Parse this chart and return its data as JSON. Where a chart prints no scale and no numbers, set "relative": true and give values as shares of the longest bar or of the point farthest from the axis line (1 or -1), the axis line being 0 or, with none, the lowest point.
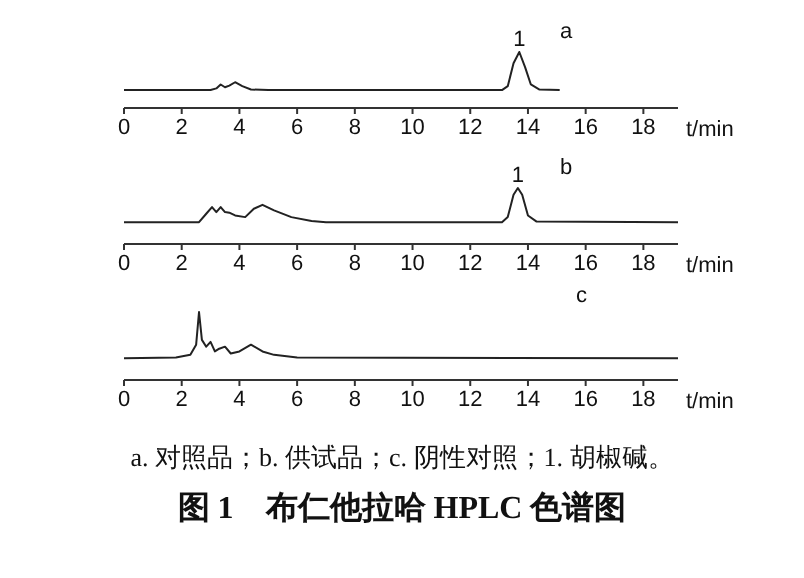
{
  "chart_data": [
    {
      "type": "line",
      "title": "a",
      "relative": true,
      "xlabel": "t/min",
      "xlim": [
        0,
        19.2
      ],
      "xticks": [
        0,
        2,
        4,
        6,
        8,
        10,
        12,
        14,
        16,
        18
      ],
      "grid": false,
      "annotations": [
        {
          "text": "1",
          "x": 13.7,
          "y": 1
        }
      ],
      "series": [
        {
          "color": "#222222",
          "x": [
            0,
            3.0,
            3.2,
            3.35,
            3.5,
            3.65,
            3.85,
            4.1,
            4.4,
            5.0,
            13.1,
            13.3,
            13.5,
            13.7,
            13.9,
            14.1,
            14.4,
            15.1
          ],
          "values": [
            0.32,
            0.32,
            0.35,
            0.42,
            0.37,
            0.4,
            0.46,
            0.39,
            0.33,
            0.32,
            0.32,
            0.39,
            0.8,
            1,
            0.73,
            0.42,
            0.33,
            0.32
          ]
        }
      ]
    },
    {
      "type": "line",
      "title": "b",
      "relative": true,
      "xlabel": "t/min",
      "xlim": [
        0,
        19.2
      ],
      "xticks": [
        0,
        2,
        4,
        6,
        8,
        10,
        12,
        14,
        16,
        18
      ],
      "grid": false,
      "annotations": [
        {
          "text": "1",
          "x": 13.65,
          "y": 1
        }
      ],
      "series": [
        {
          "color": "#222222",
          "x": [
            0,
            2.6,
            2.85,
            3.05,
            3.2,
            3.35,
            3.5,
            3.65,
            3.85,
            4.2,
            4.5,
            4.8,
            5.2,
            5.8,
            6.5,
            7.0,
            13.1,
            13.3,
            13.5,
            13.65,
            13.8,
            14.0,
            14.3,
            19.2
          ],
          "values": [
            0.39,
            0.39,
            0.54,
            0.66,
            0.57,
            0.66,
            0.57,
            0.56,
            0.51,
            0.48,
            0.63,
            0.7,
            0.6,
            0.48,
            0.41,
            0.39,
            0.39,
            0.48,
            0.88,
            1,
            0.88,
            0.51,
            0.4,
            0.39
          ]
        }
      ]
    },
    {
      "type": "line",
      "title": "c",
      "relative": true,
      "xlabel": "t/min",
      "xlim": [
        0,
        19.2
      ],
      "xticks": [
        0,
        2,
        4,
        6,
        8,
        10,
        12,
        14,
        16,
        18
      ],
      "grid": false,
      "series": [
        {
          "color": "#222222",
          "x": [
            0,
            1.8,
            2.3,
            2.5,
            2.6,
            2.7,
            2.85,
            3.0,
            3.15,
            3.3,
            3.5,
            3.7,
            4.0,
            4.4,
            4.8,
            5.2,
            6.0,
            19.2
          ],
          "values": [
            0.32,
            0.33,
            0.37,
            0.52,
            1,
            0.59,
            0.49,
            0.56,
            0.42,
            0.46,
            0.49,
            0.39,
            0.42,
            0.52,
            0.42,
            0.37,
            0.33,
            0.32
          ]
        }
      ]
    },
    {
      "type": "other",
      "title": "图 1　布仁他拉哈 HPLC 色谱图",
      "annotations": [
        "a. 对照品；b. 供试品；c. 阴性对照；1. 胡椒碱。"
      ]
    }
  ]
}
